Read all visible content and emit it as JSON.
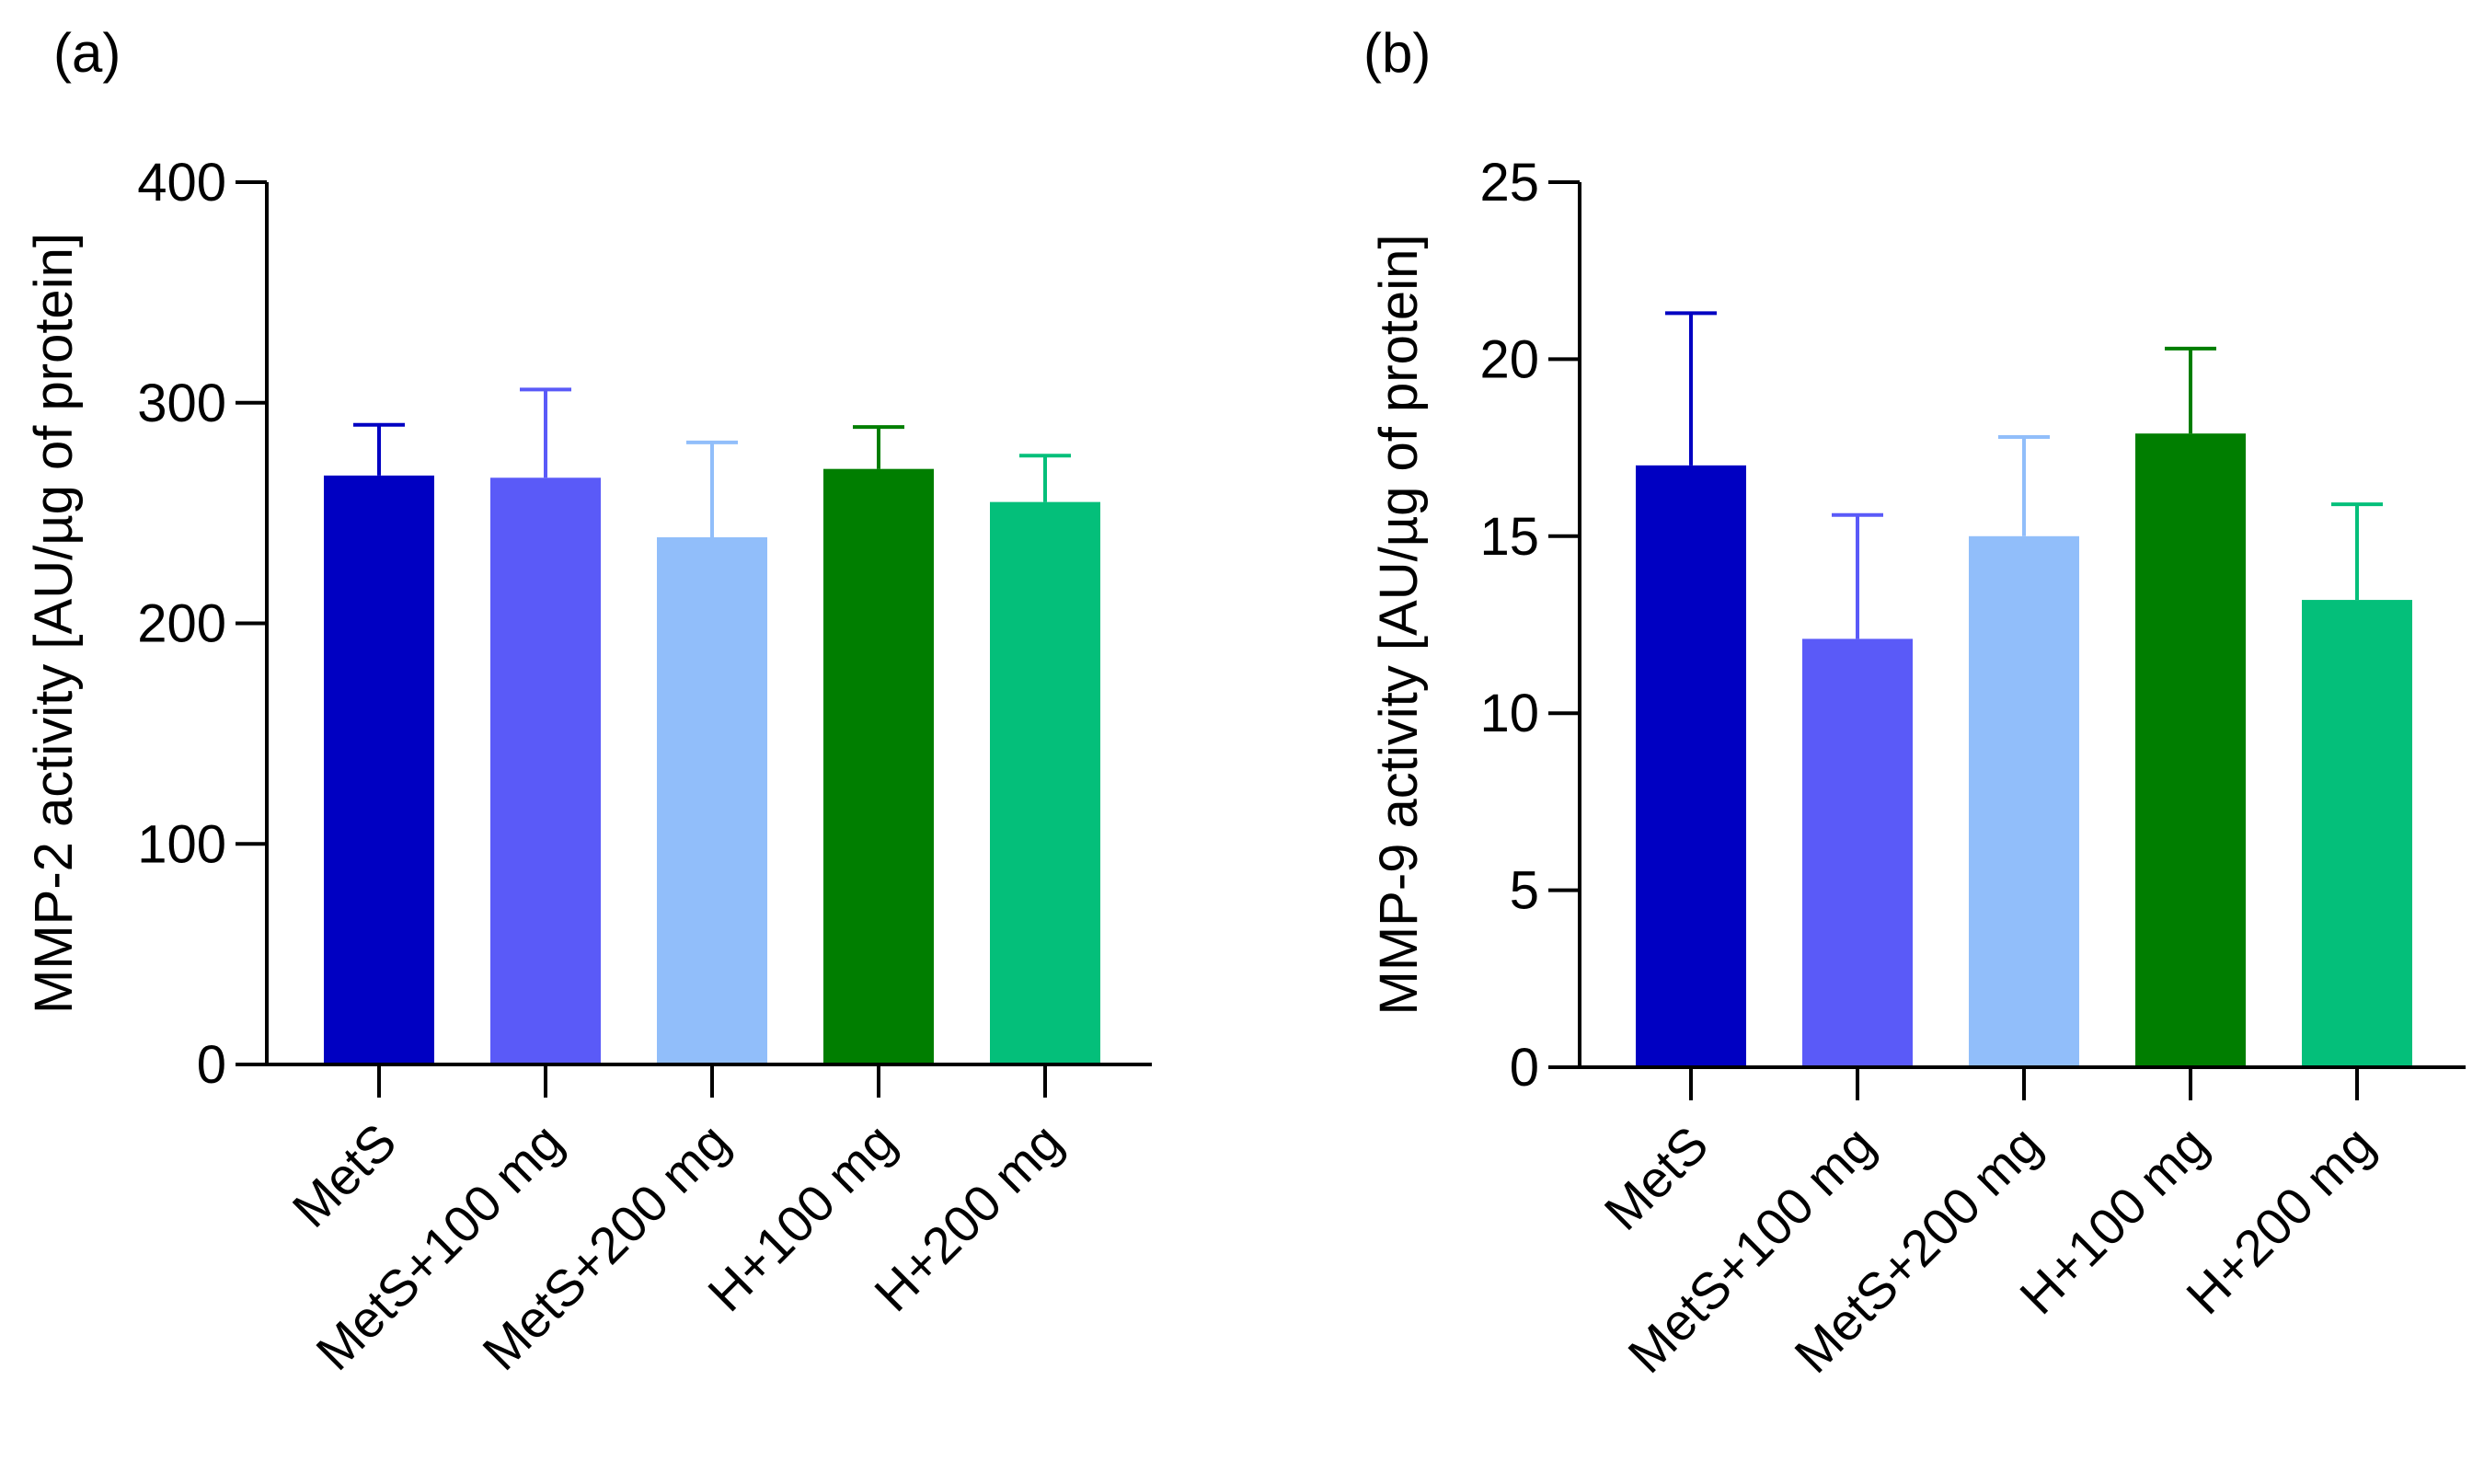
{
  "chart_data": [
    {
      "type": "bar",
      "panel_label": "(a)",
      "title": "",
      "xlabel": "",
      "ylabel": "MMP-2 activity [AU/µg of protein]",
      "ylim": [
        0,
        400
      ],
      "yticks": [
        0,
        100,
        200,
        300,
        400
      ],
      "categories": [
        "MetS",
        "MetS+100 mg",
        "MetS+200 mg",
        "H+100 mg",
        "H+200 mg"
      ],
      "values": [
        267,
        266,
        239,
        270,
        255
      ],
      "error_upper": [
        290,
        306,
        282,
        289,
        276
      ],
      "colors": [
        "#0000C2",
        "#5A5AF8",
        "#91BEFA",
        "#007E00",
        "#04BF7A"
      ],
      "grid": false
    },
    {
      "type": "bar",
      "panel_label": "(b)",
      "title": "",
      "xlabel": "",
      "ylabel": "MMP-9 activity [AU/µg of protein]",
      "ylim": [
        0,
        25
      ],
      "yticks": [
        0,
        5,
        10,
        15,
        20,
        25
      ],
      "categories": [
        "MetS",
        "MetS+100 mg",
        "MetS+200 mg",
        "H+100 mg",
        "H+200 mg"
      ],
      "values": [
        17.0,
        12.1,
        15.0,
        17.9,
        13.2
      ],
      "error_upper": [
        21.3,
        15.6,
        17.8,
        20.3,
        15.9
      ],
      "colors": [
        "#0000C2",
        "#5A5AF8",
        "#91BEFA",
        "#007E00",
        "#04BF7A"
      ],
      "grid": false
    }
  ]
}
